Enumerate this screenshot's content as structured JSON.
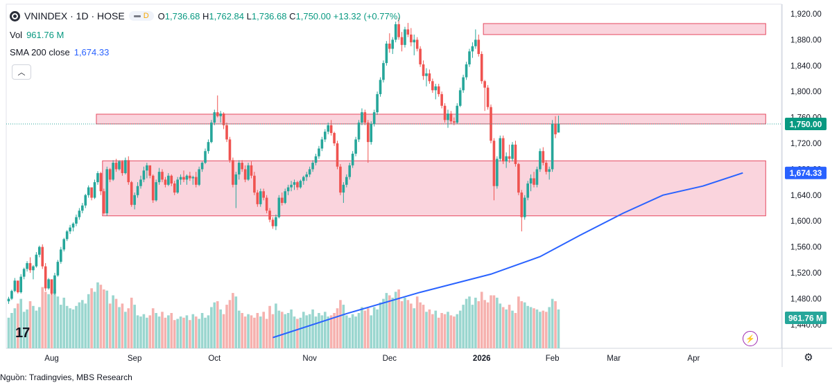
{
  "header": {
    "symbol": "VNINDEX · 1D · HOSE",
    "mode_badge": "D",
    "open_label": "O",
    "open": "1,736.68",
    "high_label": "H",
    "high": "1,762.84",
    "low_label": "L",
    "low": "1,736.68",
    "close_label": "C",
    "close": "1,750.00",
    "change": "+13.32 (+0.77%)",
    "vol_label": "Vol",
    "vol_value": "961.76 M",
    "sma_label": "SMA 200 close",
    "sma_value": "1,674.33"
  },
  "footer": {
    "source": "Nguồn: Tradingvies, MBS Research"
  },
  "colors": {
    "up": "#26a69a",
    "down": "#ef5350",
    "vol_up": "#9ad6cf",
    "vol_down": "#f6b1ae",
    "sma": "#2962ff",
    "zone_fill": "#f8c5d1",
    "zone_stroke": "#e5485f"
  },
  "chart_data": {
    "type": "candlestick",
    "title": "VNINDEX · 1D · HOSE",
    "ylim": [
      1420,
      1925
    ],
    "y_ticks": [
      1440,
      1480,
      1520,
      1560,
      1600,
      1640,
      1680,
      1720,
      1760,
      1800,
      1840,
      1880,
      1920
    ],
    "y_tick_labels": [
      "1,440.00",
      "1,480.00",
      "1,520.00",
      "1,560.00",
      "1,600.00",
      "1,640.00",
      "1,680.00",
      "1,720.00",
      "1,760.00",
      "1,800.00",
      "1,840.00",
      "1,880.00",
      "1,920.00"
    ],
    "x_tick_labels": [
      "Aug",
      "Sep",
      "Oct",
      "Nov",
      "Dec",
      "2026",
      "Feb",
      "Mar",
      "Apr"
    ],
    "x_tick_bar_index": [
      14,
      41,
      67,
      98,
      124,
      154,
      177,
      197,
      223
    ],
    "price_labels": [
      {
        "value": 1750.0,
        "text": "1,750.00",
        "color": "#089981"
      },
      {
        "value": 1674.33,
        "text": "1,674.33",
        "color": "#2962ff"
      }
    ],
    "volume_label": "961.76 M",
    "zones": [
      {
        "y_low": 1888,
        "y_high": 1905,
        "bar_from": 155,
        "bar_to": 246
      },
      {
        "y_low": 1750,
        "y_high": 1765,
        "bar_from": 29,
        "bar_to": 246
      },
      {
        "y_low": 1608,
        "y_high": 1693,
        "bar_from": 31,
        "bar_to": 246
      }
    ],
    "sma200": [
      {
        "bar": 86,
        "value": 1420
      },
      {
        "bar": 110,
        "value": 1457
      },
      {
        "bar": 134,
        "value": 1490
      },
      {
        "bar": 157,
        "value": 1518
      },
      {
        "bar": 173,
        "value": 1545
      },
      {
        "bar": 186,
        "value": 1578
      },
      {
        "bar": 200,
        "value": 1612
      },
      {
        "bar": 213,
        "value": 1640
      },
      {
        "bar": 226,
        "value": 1654
      },
      {
        "bar": 239,
        "value": 1674.33
      }
    ],
    "candles": [
      [
        1476,
        1483,
        1472,
        1480,
        26
      ],
      [
        1480,
        1494,
        1478,
        1492,
        30
      ],
      [
        1492,
        1512,
        1490,
        1508,
        34
      ],
      [
        1508,
        1506,
        1488,
        1490,
        38
      ],
      [
        1490,
        1518,
        1488,
        1514,
        42
      ],
      [
        1514,
        1528,
        1510,
        1526,
        31
      ],
      [
        1526,
        1538,
        1522,
        1535,
        33
      ],
      [
        1535,
        1544,
        1520,
        1524,
        40
      ],
      [
        1524,
        1532,
        1510,
        1530,
        36
      ],
      [
        1530,
        1552,
        1528,
        1548,
        32
      ],
      [
        1548,
        1562,
        1544,
        1560,
        35
      ],
      [
        1560,
        1564,
        1526,
        1530,
        52
      ],
      [
        1530,
        1535,
        1492,
        1496,
        48
      ],
      [
        1496,
        1512,
        1494,
        1510,
        46
      ],
      [
        1510,
        1508,
        1486,
        1488,
        58
      ],
      [
        1488,
        1520,
        1486,
        1516,
        50
      ],
      [
        1516,
        1540,
        1514,
        1537,
        44
      ],
      [
        1537,
        1560,
        1534,
        1556,
        37
      ],
      [
        1556,
        1574,
        1553,
        1572,
        43
      ],
      [
        1572,
        1586,
        1569,
        1584,
        36
      ],
      [
        1584,
        1594,
        1580,
        1590,
        34
      ],
      [
        1590,
        1598,
        1584,
        1596,
        33
      ],
      [
        1596,
        1610,
        1592,
        1606,
        36
      ],
      [
        1606,
        1620,
        1602,
        1616,
        39
      ],
      [
        1616,
        1628,
        1612,
        1624,
        41
      ],
      [
        1624,
        1642,
        1620,
        1640,
        38
      ],
      [
        1640,
        1655,
        1636,
        1652,
        46
      ],
      [
        1652,
        1648,
        1632,
        1636,
        51
      ],
      [
        1636,
        1664,
        1634,
        1660,
        48
      ],
      [
        1660,
        1677,
        1656,
        1674,
        56
      ],
      [
        1674,
        1676,
        1640,
        1646,
        54
      ],
      [
        1646,
        1650,
        1610,
        1612,
        50
      ],
      [
        1612,
        1684,
        1608,
        1680,
        49
      ],
      [
        1680,
        1682,
        1660,
        1664,
        38
      ],
      [
        1664,
        1694,
        1662,
        1690,
        45
      ],
      [
        1690,
        1696,
        1676,
        1680,
        42
      ],
      [
        1680,
        1694,
        1678,
        1692,
        35
      ],
      [
        1692,
        1694,
        1670,
        1674,
        38
      ],
      [
        1674,
        1698,
        1672,
        1694,
        31
      ],
      [
        1694,
        1700,
        1656,
        1660,
        34
      ],
      [
        1660,
        1662,
        1622,
        1625,
        43
      ],
      [
        1625,
        1644,
        1618,
        1640,
        37
      ],
      [
        1640,
        1660,
        1636,
        1654,
        28
      ],
      [
        1654,
        1670,
        1650,
        1664,
        27
      ],
      [
        1664,
        1684,
        1660,
        1678,
        29
      ],
      [
        1678,
        1690,
        1666,
        1686,
        26
      ],
      [
        1686,
        1682,
        1666,
        1670,
        28
      ],
      [
        1670,
        1672,
        1628,
        1632,
        34
      ],
      [
        1632,
        1664,
        1630,
        1660,
        30
      ],
      [
        1660,
        1682,
        1656,
        1676,
        27
      ],
      [
        1676,
        1680,
        1660,
        1664,
        31
      ],
      [
        1664,
        1668,
        1652,
        1656,
        26
      ],
      [
        1656,
        1674,
        1654,
        1670,
        28
      ],
      [
        1670,
        1672,
        1654,
        1658,
        30
      ],
      [
        1658,
        1662,
        1640,
        1644,
        24
      ],
      [
        1644,
        1668,
        1642,
        1664,
        25
      ],
      [
        1664,
        1672,
        1656,
        1668,
        27
      ],
      [
        1668,
        1678,
        1660,
        1664,
        26
      ],
      [
        1664,
        1672,
        1656,
        1670,
        28
      ],
      [
        1670,
        1676,
        1662,
        1666,
        24
      ],
      [
        1666,
        1670,
        1656,
        1668,
        29
      ],
      [
        1668,
        1676,
        1652,
        1656,
        27
      ],
      [
        1656,
        1684,
        1654,
        1680,
        25
      ],
      [
        1680,
        1692,
        1676,
        1690,
        30
      ],
      [
        1690,
        1712,
        1688,
        1708,
        26
      ],
      [
        1708,
        1726,
        1704,
        1722,
        28
      ],
      [
        1722,
        1756,
        1720,
        1752,
        35
      ],
      [
        1752,
        1772,
        1748,
        1768,
        39
      ],
      [
        1768,
        1794,
        1760,
        1762,
        40
      ],
      [
        1762,
        1770,
        1752,
        1766,
        33
      ],
      [
        1766,
        1768,
        1742,
        1748,
        29
      ],
      [
        1748,
        1752,
        1722,
        1726,
        37
      ],
      [
        1726,
        1730,
        1690,
        1694,
        41
      ],
      [
        1694,
        1698,
        1652,
        1656,
        47
      ],
      [
        1656,
        1676,
        1620,
        1672,
        44
      ],
      [
        1672,
        1694,
        1664,
        1690,
        32
      ],
      [
        1690,
        1694,
        1676,
        1680,
        30
      ],
      [
        1680,
        1686,
        1660,
        1664,
        27
      ],
      [
        1664,
        1690,
        1662,
        1686,
        29
      ],
      [
        1686,
        1692,
        1666,
        1670,
        28
      ],
      [
        1670,
        1676,
        1640,
        1644,
        26
      ],
      [
        1644,
        1648,
        1622,
        1626,
        30
      ],
      [
        1626,
        1650,
        1622,
        1646,
        27
      ],
      [
        1646,
        1650,
        1632,
        1636,
        31
      ],
      [
        1636,
        1640,
        1612,
        1616,
        25
      ],
      [
        1616,
        1620,
        1598,
        1602,
        36
      ],
      [
        1602,
        1606,
        1588,
        1592,
        29
      ],
      [
        1592,
        1610,
        1586,
        1606,
        38
      ],
      [
        1606,
        1640,
        1604,
        1636,
        32
      ],
      [
        1636,
        1644,
        1624,
        1628,
        31
      ],
      [
        1628,
        1650,
        1626,
        1646,
        29
      ],
      [
        1646,
        1656,
        1640,
        1652,
        30
      ],
      [
        1652,
        1662,
        1646,
        1656,
        33
      ],
      [
        1656,
        1664,
        1648,
        1660,
        27
      ],
      [
        1660,
        1662,
        1648,
        1652,
        25
      ],
      [
        1652,
        1664,
        1650,
        1662,
        26
      ],
      [
        1662,
        1670,
        1656,
        1668,
        31
      ],
      [
        1668,
        1676,
        1662,
        1672,
        28
      ],
      [
        1672,
        1684,
        1668,
        1680,
        29
      ],
      [
        1680,
        1694,
        1676,
        1690,
        33
      ],
      [
        1690,
        1704,
        1686,
        1700,
        27
      ],
      [
        1700,
        1716,
        1696,
        1712,
        30
      ],
      [
        1712,
        1730,
        1708,
        1726,
        28
      ],
      [
        1726,
        1742,
        1722,
        1738,
        31
      ],
      [
        1738,
        1752,
        1734,
        1748,
        27
      ],
      [
        1748,
        1756,
        1732,
        1736,
        28
      ],
      [
        1736,
        1738,
        1716,
        1720,
        30
      ],
      [
        1720,
        1724,
        1680,
        1684,
        34
      ],
      [
        1684,
        1688,
        1640,
        1644,
        41
      ],
      [
        1644,
        1660,
        1628,
        1656,
        37
      ],
      [
        1656,
        1672,
        1652,
        1668,
        28
      ],
      [
        1668,
        1690,
        1664,
        1686,
        26
      ],
      [
        1686,
        1708,
        1682,
        1704,
        29
      ],
      [
        1704,
        1730,
        1700,
        1726,
        27
      ],
      [
        1726,
        1756,
        1722,
        1752,
        30
      ],
      [
        1752,
        1774,
        1748,
        1768,
        35
      ],
      [
        1768,
        1772,
        1748,
        1752,
        32
      ],
      [
        1752,
        1756,
        1690,
        1722,
        34
      ],
      [
        1722,
        1754,
        1718,
        1750,
        28
      ],
      [
        1750,
        1772,
        1746,
        1768,
        35
      ],
      [
        1768,
        1800,
        1764,
        1796,
        33
      ],
      [
        1796,
        1822,
        1792,
        1818,
        39
      ],
      [
        1818,
        1848,
        1814,
        1844,
        42
      ],
      [
        1844,
        1878,
        1840,
        1874,
        47
      ],
      [
        1874,
        1890,
        1860,
        1866,
        45
      ],
      [
        1866,
        1884,
        1858,
        1880,
        43
      ],
      [
        1880,
        1908,
        1876,
        1904,
        48
      ],
      [
        1904,
        1914,
        1880,
        1884,
        50
      ],
      [
        1884,
        1892,
        1862,
        1872,
        40
      ],
      [
        1872,
        1900,
        1868,
        1896,
        43
      ],
      [
        1896,
        1906,
        1884,
        1888,
        41
      ],
      [
        1888,
        1898,
        1870,
        1876,
        38
      ],
      [
        1876,
        1888,
        1856,
        1880,
        34
      ],
      [
        1880,
        1884,
        1862,
        1866,
        44
      ],
      [
        1866,
        1870,
        1838,
        1842,
        39
      ],
      [
        1842,
        1848,
        1818,
        1824,
        37
      ],
      [
        1824,
        1836,
        1808,
        1828,
        31
      ],
      [
        1828,
        1834,
        1812,
        1816,
        33
      ],
      [
        1816,
        1820,
        1798,
        1802,
        29
      ],
      [
        1802,
        1812,
        1788,
        1808,
        32
      ],
      [
        1808,
        1812,
        1792,
        1796,
        26
      ],
      [
        1796,
        1800,
        1774,
        1778,
        30
      ],
      [
        1778,
        1782,
        1752,
        1756,
        29
      ],
      [
        1756,
        1772,
        1744,
        1766,
        31
      ],
      [
        1766,
        1770,
        1750,
        1754,
        28
      ],
      [
        1754,
        1760,
        1748,
        1752,
        27
      ],
      [
        1752,
        1782,
        1750,
        1778,
        29
      ],
      [
        1778,
        1806,
        1776,
        1802,
        32
      ],
      [
        1802,
        1826,
        1798,
        1822,
        37
      ],
      [
        1822,
        1846,
        1818,
        1842,
        42
      ],
      [
        1842,
        1866,
        1838,
        1862,
        44
      ],
      [
        1862,
        1876,
        1852,
        1870,
        37
      ],
      [
        1870,
        1896,
        1866,
        1880,
        43
      ],
      [
        1880,
        1888,
        1854,
        1858,
        40
      ],
      [
        1858,
        1862,
        1812,
        1816,
        48
      ],
      [
        1816,
        1818,
        1770,
        1806,
        41
      ],
      [
        1806,
        1810,
        1772,
        1776,
        39
      ],
      [
        1776,
        1780,
        1720,
        1724,
        45
      ],
      [
        1724,
        1728,
        1632,
        1654,
        45
      ],
      [
        1654,
        1700,
        1650,
        1696,
        43
      ],
      [
        1696,
        1732,
        1692,
        1728,
        38
      ],
      [
        1728,
        1732,
        1688,
        1692,
        35
      ],
      [
        1692,
        1706,
        1682,
        1700,
        33
      ],
      [
        1700,
        1718,
        1690,
        1696,
        37
      ],
      [
        1696,
        1722,
        1692,
        1718,
        32
      ],
      [
        1718,
        1724,
        1684,
        1688,
        30
      ],
      [
        1688,
        1690,
        1640,
        1644,
        44
      ],
      [
        1644,
        1648,
        1584,
        1606,
        40
      ],
      [
        1606,
        1640,
        1602,
        1636,
        39
      ],
      [
        1636,
        1662,
        1632,
        1658,
        36
      ],
      [
        1658,
        1672,
        1646,
        1666,
        35
      ],
      [
        1666,
        1676,
        1652,
        1656,
        34
      ],
      [
        1656,
        1684,
        1652,
        1680,
        33
      ],
      [
        1680,
        1712,
        1676,
        1708,
        31
      ],
      [
        1708,
        1714,
        1686,
        1690,
        32
      ],
      [
        1690,
        1694,
        1672,
        1676,
        31
      ],
      [
        1676,
        1684,
        1664,
        1680,
        35
      ],
      [
        1680,
        1756,
        1676,
        1750,
        42
      ],
      [
        1750,
        1762,
        1728,
        1734,
        40
      ],
      [
        1736.68,
        1762.84,
        1736.68,
        1750,
        33
      ]
    ],
    "volume_units": "relative"
  }
}
